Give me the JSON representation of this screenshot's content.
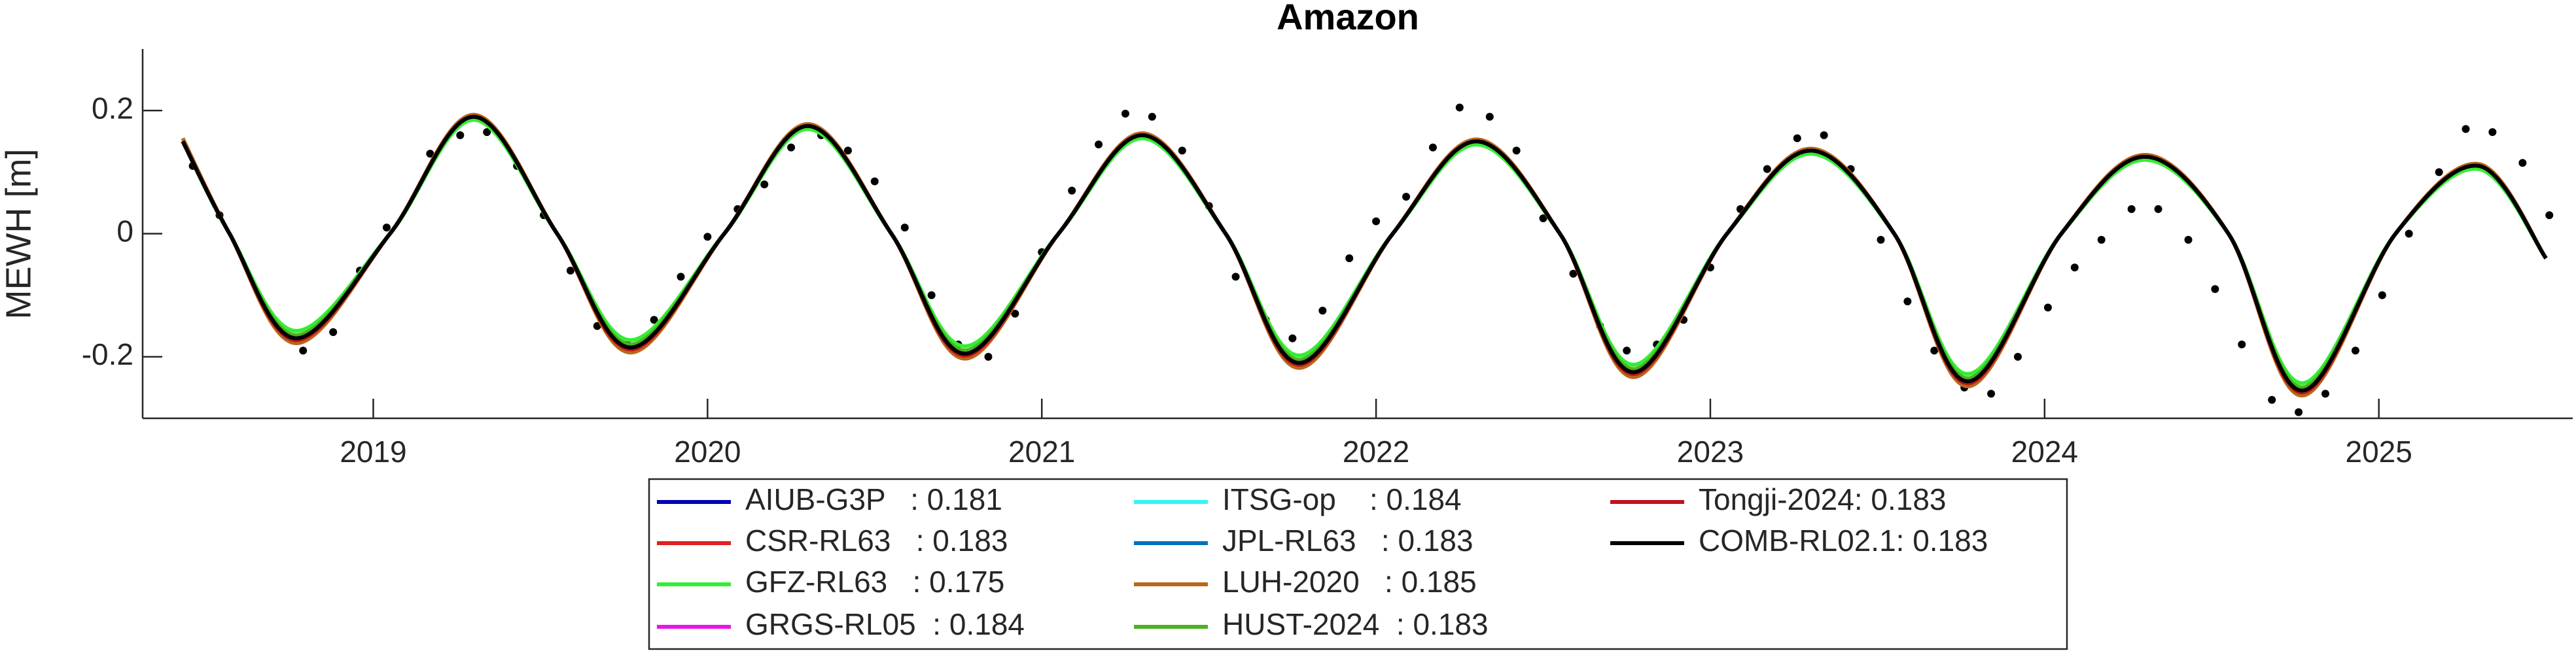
{
  "chart_data": {
    "type": "line",
    "title": "Amazon",
    "y_label": "MEWH [m]",
    "xlim": [
      2018.31,
      2025.58
    ],
    "xticks": [
      2019,
      2020,
      2021,
      2022,
      2023,
      2024,
      2025
    ],
    "ylim": [
      -0.3,
      0.3
    ],
    "yticks": [
      -0.2,
      0,
      0.2
    ],
    "x": [
      2018.43,
      2018.57,
      2018.77,
      2019.05,
      2019.3,
      2019.55,
      2019.77,
      2020.05,
      2020.3,
      2020.55,
      2020.77,
      2021.05,
      2021.3,
      2021.55,
      2021.77,
      2022.05,
      2022.3,
      2022.55,
      2022.77,
      2023.05,
      2023.3,
      2023.55,
      2023.77,
      2024.05,
      2024.3,
      2024.55,
      2024.77,
      2025.05,
      2025.3,
      2025.5
    ],
    "series": [
      {
        "name": "AIUB-G3P   : 0.181",
        "color": "#0000b4",
        "values": [
          0.15,
          0,
          -0.17,
          0,
          0.192,
          0,
          -0.185,
          0,
          0.177,
          0,
          -0.195,
          0,
          0.162,
          0,
          -0.21,
          0,
          0.152,
          0,
          -0.225,
          0,
          0.137,
          0,
          -0.24,
          0,
          0.127,
          0,
          -0.255,
          0,
          0.112,
          -0.04
        ]
      },
      {
        "name": "CSR-RL63   : 0.183",
        "color": "#e0201e",
        "values": [
          0.15,
          0,
          -0.17,
          0,
          0.19,
          0,
          -0.185,
          0,
          0.175,
          0,
          -0.195,
          0,
          0.16,
          0,
          -0.21,
          0,
          0.15,
          0,
          -0.225,
          0,
          0.135,
          0,
          -0.24,
          0,
          0.125,
          0,
          -0.255,
          0,
          0.11,
          -0.04
        ]
      },
      {
        "name": "GFZ-RL63   : 0.175",
        "color": "#33ee33",
        "values": [
          0.15,
          0,
          -0.158,
          0,
          0.185,
          0,
          -0.173,
          0,
          0.17,
          0,
          -0.183,
          0,
          0.155,
          0,
          -0.198,
          0,
          0.145,
          0,
          -0.213,
          0,
          0.13,
          0,
          -0.228,
          0,
          0.12,
          0,
          -0.243,
          0,
          0.105,
          -0.04
        ]
      },
      {
        "name": "GRGS-RL05  : 0.184",
        "color": "#e815e8",
        "values": [
          0.15,
          0,
          -0.175,
          0,
          0.193,
          0,
          -0.19,
          0,
          0.178,
          0,
          -0.2,
          0,
          0.163,
          0,
          -0.215,
          0,
          0.153,
          0,
          -0.23,
          0,
          0.138,
          0,
          -0.245,
          0,
          0.128,
          0,
          -0.26,
          0,
          0.113,
          -0.04
        ]
      },
      {
        "name": "ITSG-op    : 0.184",
        "color": "#33f5f5",
        "values": [
          0.15,
          0,
          -0.17,
          0,
          0.19,
          0,
          -0.185,
          0,
          0.175,
          0,
          -0.195,
          0,
          0.16,
          0,
          -0.21,
          0,
          0.15,
          0,
          -0.225,
          0,
          0.135,
          0,
          -0.24,
          0,
          0.125,
          0,
          -0.255,
          0,
          0.11,
          -0.04
        ]
      },
      {
        "name": "JPL-RL63   : 0.183",
        "color": "#0072bd",
        "values": [
          0.15,
          0,
          -0.17,
          0,
          0.19,
          0,
          -0.185,
          0,
          0.175,
          0,
          -0.195,
          0,
          0.16,
          0,
          -0.21,
          0,
          0.15,
          0,
          -0.225,
          0,
          0.135,
          0,
          -0.24,
          0,
          0.125,
          0,
          -0.255,
          0,
          0.11,
          -0.04
        ]
      },
      {
        "name": "LUH-2020   : 0.185",
        "color": "#b8681a",
        "values": [
          0.155,
          0,
          -0.178,
          0,
          0.193,
          0,
          -0.193,
          0,
          0.178,
          0,
          -0.203,
          0,
          0.163,
          0,
          -0.218,
          0,
          0.153,
          0,
          -0.233,
          0,
          0.138,
          0,
          -0.248,
          0,
          0.128,
          0,
          -0.263,
          0,
          0.113,
          -0.04
        ]
      },
      {
        "name": "HUST-2024  : 0.183",
        "color": "#4cb021",
        "values": [
          0.15,
          0,
          -0.165,
          0,
          0.19,
          0,
          -0.18,
          0,
          0.175,
          0,
          -0.19,
          0,
          0.16,
          0,
          -0.205,
          0,
          0.15,
          0,
          -0.22,
          0,
          0.135,
          0,
          -0.235,
          0,
          0.125,
          0,
          -0.25,
          0,
          0.11,
          -0.04
        ]
      },
      {
        "name": "Tongji-2024: 0.183",
        "color": "#c0121e",
        "values": [
          0.15,
          0,
          -0.173,
          0,
          0.19,
          0,
          -0.188,
          0,
          0.175,
          0,
          -0.198,
          0,
          0.16,
          0,
          -0.213,
          0,
          0.15,
          0,
          -0.228,
          0,
          0.135,
          0,
          -0.243,
          0,
          0.125,
          0,
          -0.258,
          0,
          0.11,
          -0.04
        ]
      },
      {
        "name": "COMB-RL02.1: 0.183",
        "color": "#000000",
        "values": [
          0.15,
          0,
          -0.17,
          0,
          0.19,
          0,
          -0.185,
          0,
          0.175,
          0,
          -0.195,
          0,
          0.16,
          0,
          -0.21,
          0,
          0.15,
          0,
          -0.225,
          0,
          0.135,
          0,
          -0.24,
          0,
          0.125,
          0,
          -0.255,
          0,
          0.11,
          -0.04
        ]
      }
    ],
    "observations": {
      "color": "#000000",
      "x": [
        2018.46,
        2018.54,
        2018.79,
        2018.88,
        2018.96,
        2019.04,
        2019.17,
        2019.26,
        2019.34,
        2019.43,
        2019.51,
        2019.59,
        2019.67,
        2019.76,
        2019.84,
        2019.92,
        2020.0,
        2020.09,
        2020.17,
        2020.25,
        2020.34,
        2020.42,
        2020.5,
        2020.59,
        2020.67,
        2020.75,
        2020.84,
        2020.92,
        2021.0,
        2021.09,
        2021.17,
        2021.25,
        2021.33,
        2021.42,
        2021.5,
        2021.58,
        2021.67,
        2021.75,
        2021.84,
        2021.92,
        2022.0,
        2022.09,
        2022.17,
        2022.25,
        2022.34,
        2022.42,
        2022.5,
        2022.59,
        2022.67,
        2022.75,
        2022.84,
        2022.92,
        2023.0,
        2023.09,
        2023.17,
        2023.26,
        2023.34,
        2023.42,
        2023.51,
        2023.59,
        2023.67,
        2023.76,
        2023.84,
        2023.92,
        2024.01,
        2024.09,
        2024.17,
        2024.26,
        2024.34,
        2024.43,
        2024.51,
        2024.59,
        2024.68,
        2024.76,
        2024.84,
        2024.93,
        2025.01,
        2025.09,
        2025.18,
        2025.26,
        2025.34,
        2025.43,
        2025.51
      ],
      "values": [
        0.11,
        0.03,
        -0.19,
        -0.16,
        -0.06,
        0.01,
        0.13,
        0.16,
        0.165,
        0.11,
        0.03,
        -0.06,
        -0.15,
        -0.18,
        -0.14,
        -0.07,
        -0.005,
        0.04,
        0.08,
        0.14,
        0.16,
        0.135,
        0.085,
        0.01,
        -0.1,
        -0.18,
        -0.2,
        -0.13,
        -0.03,
        0.07,
        0.145,
        0.195,
        0.19,
        0.135,
        0.045,
        -0.07,
        -0.14,
        -0.17,
        -0.125,
        -0.04,
        0.02,
        0.06,
        0.14,
        0.205,
        0.19,
        0.135,
        0.025,
        -0.065,
        -0.15,
        -0.19,
        -0.18,
        -0.14,
        -0.055,
        0.04,
        0.105,
        0.155,
        0.16,
        0.105,
        -0.01,
        -0.11,
        -0.19,
        -0.25,
        -0.26,
        -0.2,
        -0.12,
        -0.055,
        -0.01,
        0.04,
        0.04,
        -0.01,
        -0.09,
        -0.18,
        -0.27,
        -0.29,
        -0.26,
        -0.19,
        -0.1,
        0,
        0.1,
        0.17,
        0.165,
        0.115,
        0.03
      ]
    }
  }
}
